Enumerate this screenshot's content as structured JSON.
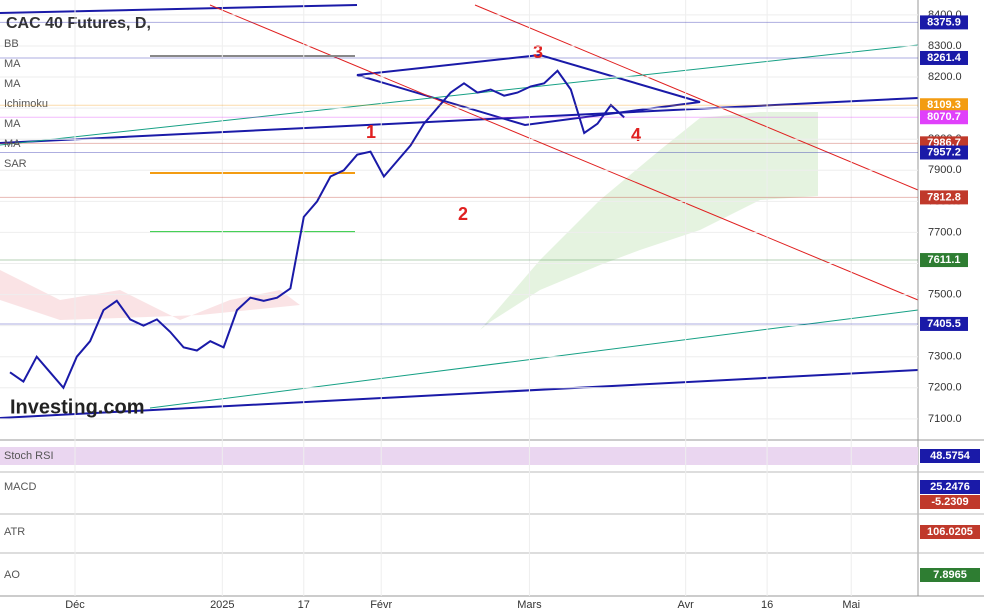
{
  "chart_data": {
    "type": "line",
    "title": "CAC 40 Futures, D,",
    "indicators": [
      "BB",
      "MA",
      "MA",
      "Ichimoku",
      "MA",
      "MA",
      "SAR"
    ],
    "watermark": "Investing.com",
    "annotations": [
      "1",
      "2",
      "3",
      "4"
    ],
    "color": "#1a1aa8",
    "values": [
      7250,
      7220,
      7300,
      7250,
      7200,
      7300,
      7350,
      7450,
      7480,
      7420,
      7400,
      7420,
      7380,
      7330,
      7320,
      7350,
      7330,
      7450,
      7490,
      7480,
      7490,
      7520,
      7750,
      7800,
      7880,
      7900,
      7950,
      7960,
      7880,
      7930,
      7980,
      8050,
      8100,
      8150,
      8180,
      8150,
      8160,
      8140,
      8150,
      8170,
      8180,
      8220,
      8160,
      8020,
      8050,
      8110,
      8070
    ],
    "xlim": [
      0,
      68
    ],
    "xticks": [
      {
        "value": 4.87,
        "label": "Déc"
      },
      {
        "value": 15.9,
        "label": "2025"
      },
      {
        "value": 22.0,
        "label": "17"
      },
      {
        "value": 27.8,
        "label": "Févr"
      },
      {
        "value": 38.9,
        "label": "Mars"
      },
      {
        "value": 50.6,
        "label": "Avr"
      },
      {
        "value": 56.7,
        "label": "16"
      },
      {
        "value": 63.0,
        "label": "Mai"
      }
    ],
    "ylim": [
      7032,
      8448
    ],
    "yticks": [
      {
        "value": 8400,
        "label": "8400.0"
      },
      {
        "value": 8300,
        "label": "8300.0"
      },
      {
        "value": 8200,
        "label": "8200.0"
      },
      {
        "value": 8100,
        "label": "8100.0"
      },
      {
        "value": 8000,
        "label": "8000.0"
      },
      {
        "value": 7900,
        "label": "7900.0"
      },
      {
        "value": 7800,
        "label": "7800.0"
      },
      {
        "value": 7700,
        "label": "7700.0"
      },
      {
        "value": 7600,
        "label": "7600.0"
      },
      {
        "value": 7500,
        "label": "7500.0"
      },
      {
        "value": 7400,
        "label": "7400.0"
      },
      {
        "value": 7300,
        "label": "7300.0"
      },
      {
        "value": 7200,
        "label": "7200.0"
      },
      {
        "value": 7100,
        "label": "7100.0"
      }
    ],
    "price_labels": [
      {
        "value": 8375.9,
        "color": "#1a1aa8"
      },
      {
        "value": 8261.4,
        "color": "#1a1aa8"
      },
      {
        "value": 8109.3,
        "color": "#f39c12"
      },
      {
        "value": 8070.7,
        "color": "#e040fb"
      },
      {
        "value": 7986.7,
        "color": "#c0392b"
      },
      {
        "value": 7957.2,
        "color": "#1a1aa8"
      },
      {
        "value": 7812.8,
        "color": "#c0392b"
      },
      {
        "value": 7611.1,
        "color": "#2e7d32"
      },
      {
        "value": 7405.5,
        "color": "#1a1aa8"
      }
    ],
    "panels": [
      {
        "name": "Stoch RSI",
        "readouts": [
          {
            "value": 48.5754,
            "color": "#1a1aa8"
          }
        ]
      },
      {
        "name": "MACD",
        "readouts": [
          {
            "value": 25.2476,
            "color": "#1a1aa8"
          },
          {
            "value": -5.2309,
            "color": "#c0392b"
          }
        ]
      },
      {
        "name": "ATR",
        "readouts": [
          {
            "value": 106.0205,
            "color": "#c0392b"
          }
        ]
      },
      {
        "name": "AO",
        "readouts": [
          {
            "value": 7.8965,
            "color": "#2e7d32"
          }
        ]
      }
    ]
  }
}
